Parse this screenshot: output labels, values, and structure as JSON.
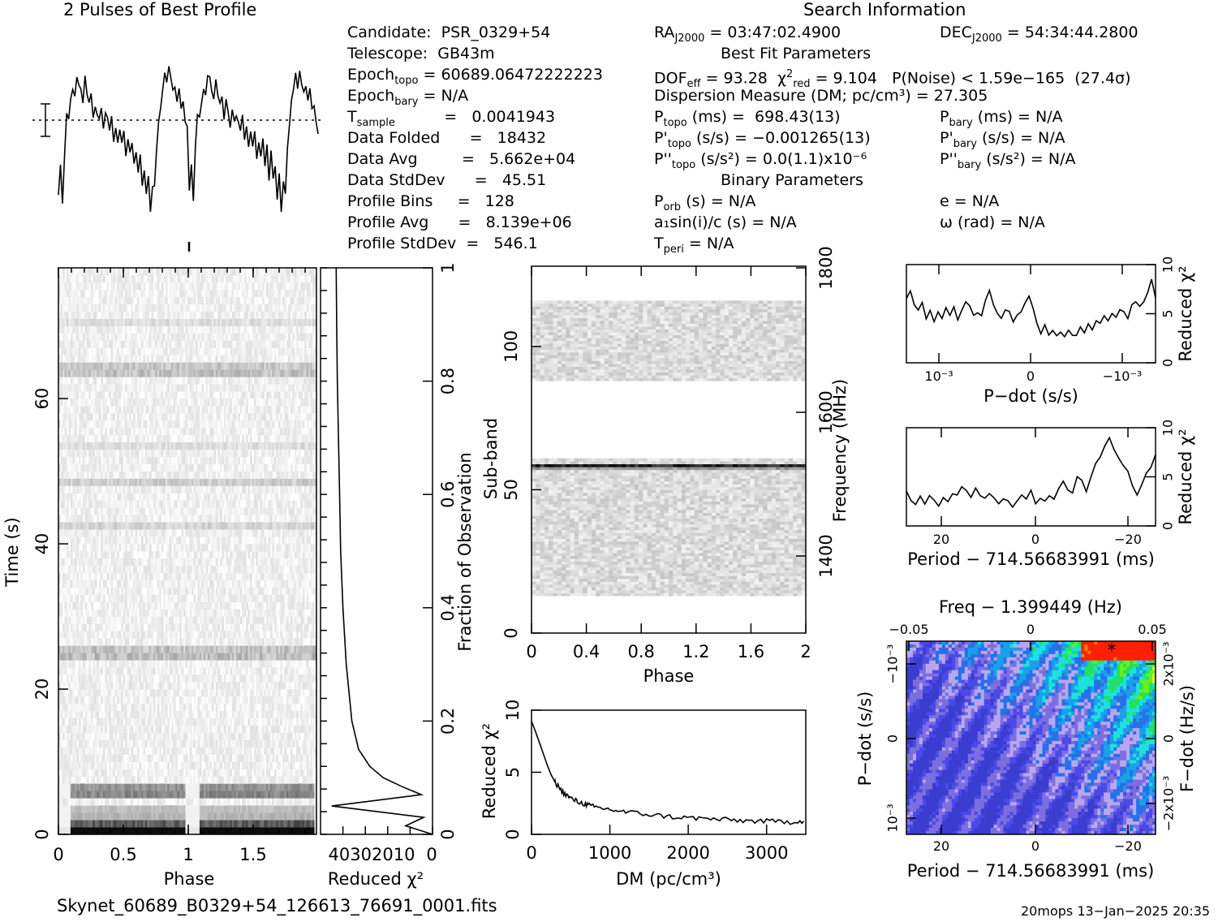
{
  "header": {
    "profile_title": "2 Pulses of Best Profile",
    "search_title": "Search Information",
    "best_fit_title": "Best Fit Parameters",
    "binary_title": "Binary Parameters"
  },
  "info_left": [
    {
      "label": "Candidate:",
      "value": "PSR_0329+54"
    },
    {
      "label": "Telescope:",
      "value": "GB43m"
    },
    {
      "label": "Epoch_topo =",
      "value": "60689.06472222223"
    },
    {
      "label": "Epoch_bary =",
      "value": "N/A"
    },
    {
      "label": "T_sample =",
      "value": "0.0041943"
    },
    {
      "label": "Data Folded =",
      "value": "18432"
    },
    {
      "label": "Data Avg =",
      "value": "5.662e+04"
    },
    {
      "label": "Data StdDev =",
      "value": "45.51"
    },
    {
      "label": "Profile Bins =",
      "value": "128"
    },
    {
      "label": "Profile Avg =",
      "value": "8.139e+06"
    },
    {
      "label": "Profile StdDev =",
      "value": "546.1"
    }
  ],
  "info_lines": {
    "candidate": "Candidate:  PSR_0329+54",
    "telescope": "Telescope:  GB43m",
    "epoch_topo": "= 60689.06472222223",
    "epoch_bary": "= N/A",
    "tsample": "=   0.0041943",
    "folded": "Data Folded      =   18432",
    "avg": "Data Avg         =   5.662e+04",
    "stddev": "Data StdDev      =   45.51",
    "bins": "Profile Bins     =   128",
    "pavg": "Profile Avg      =   8.139e+06",
    "pstd": "Profile StdDev  =   546.1",
    "ra": "= 03:47:02.4900",
    "dec": "= 54:34:44.2800",
    "dof": "= 93.28",
    "chi": "= 9.104   P(Noise) < 1.59e−165  (27.4σ)",
    "dm": "Dispersion Measure (DM; pc/cm³) = 27.305",
    "ptopo": "(ms) =  698.43(13)",
    "pbary": "(ms) = N/A",
    "pdtopo": "(s/s) = −0.001265(13)",
    "pdbary": "(s/s) = N/A",
    "pddtopo": "(s/s²) = 0.0(1.1)x10⁻⁶",
    "pddbary": "(s/s²) = N/A",
    "porb": "(s) = N/A",
    "e": "e = N/A",
    "a1": "a₁sin(i)/c (s) = N/A",
    "omega": "ω (rad) = N/A",
    "tperi": "= N/A"
  },
  "colors": {
    "trace": "#000000",
    "background": "#ffffff"
  },
  "chart_data": [
    {
      "id": "profile",
      "type": "line",
      "title": "2 Pulses of Best Profile",
      "xlim": [
        0,
        2
      ],
      "description_points_per_pulse": 64,
      "y_shape": [
        -2.5,
        -1.6,
        -2.8,
        -1.0,
        0.3,
        0.1,
        0.6,
        1.2,
        0.9,
        1.6,
        1.3,
        1.0,
        0.7,
        1.4,
        0.9,
        0.5,
        0.8,
        0.2,
        0.6,
        0.3,
        -0.1,
        0.4,
        -0.2,
        0.2,
        0.0,
        -0.4,
        0.3,
        -0.6,
        -0.3,
        -0.8,
        -0.2,
        -0.9,
        -0.5,
        -1.3,
        -0.7,
        -1.1,
        -0.6,
        -1.5,
        -1.0,
        -1.9,
        -1.2,
        -2.1,
        -1.6,
        -2.6,
        -1.9,
        -3.0,
        -2.2,
        -2.4,
        -1.0,
        -0.2,
        0.5,
        1.0,
        1.7,
        1.2,
        1.8,
        1.4,
        1.0,
        1.3,
        0.6,
        0.9,
        0.3,
        0.5,
        0.0,
        -0.4
      ]
    },
    {
      "id": "time-phase",
      "type": "heatmap",
      "xlabel": "Phase",
      "ylabel": "Time (s)",
      "xlim": [
        0,
        2
      ],
      "ylim": [
        0,
        78
      ],
      "xticks": [
        "0",
        "0.5",
        "1",
        "1.5"
      ],
      "yticks": [
        "0",
        "20",
        "40",
        "60"
      ]
    },
    {
      "id": "chi-vs-time",
      "type": "line",
      "xlabel": "Reduced χ²",
      "ylabel": "Fraction of Observation",
      "xticks": [
        "40",
        "30",
        "20",
        "10",
        "0"
      ],
      "yticks": [
        "0",
        "0.2",
        "0.4",
        "0.6",
        "0.8",
        "1"
      ],
      "fraction": [
        0.0,
        0.015,
        0.03,
        0.05,
        0.07,
        0.085,
        0.1,
        0.12,
        0.15,
        0.2,
        0.3,
        0.4,
        0.5,
        0.6,
        0.7,
        0.8,
        0.9,
        1.0
      ],
      "chi": [
        0.0,
        12.0,
        4.0,
        45.0,
        5.0,
        14.0,
        22.0,
        28.0,
        33.0,
        36.0,
        38.5,
        40.0,
        41.0,
        41.5,
        42.0,
        42.5,
        42.8,
        43.0
      ]
    },
    {
      "id": "subband-phase",
      "type": "heatmap",
      "xlabel": "Phase",
      "ylabel": "Sub-band",
      "y2label": "Frequency (MHz)",
      "xticks": [
        "0",
        "0.4",
        "0.8",
        "1.2",
        "1.6",
        "2"
      ],
      "yticks": [
        "0",
        "50",
        "100"
      ],
      "y2ticks": [
        "1400",
        "1600",
        "1800"
      ],
      "ylim": [
        0,
        128
      ],
      "bands": [
        {
          "from": 13,
          "to": 60
        },
        {
          "from": 88,
          "to": 115
        }
      ],
      "strong_band": 58
    },
    {
      "id": "dm-chi",
      "type": "line",
      "xlabel": "DM (pc/cm³)",
      "ylabel": "Reduced χ²",
      "xlim": [
        0,
        3500
      ],
      "ylim": [
        0,
        10
      ],
      "xticks": [
        "0",
        "1000",
        "2000",
        "3000"
      ],
      "yticks": [
        "0",
        "5",
        "10"
      ],
      "x": [
        0,
        50,
        100,
        150,
        200,
        250,
        300,
        400,
        500,
        600,
        700,
        800,
        1000,
        1200,
        1500,
        1800,
        2100,
        2400,
        2700,
        3000,
        3300,
        3500
      ],
      "y": [
        9.1,
        8.3,
        7.4,
        6.5,
        5.6,
        4.8,
        4.2,
        3.4,
        2.9,
        2.6,
        2.4,
        2.2,
        2.0,
        1.8,
        1.6,
        1.4,
        1.3,
        1.2,
        1.1,
        1.05,
        1.0,
        1.1
      ]
    },
    {
      "id": "pdot-chi",
      "type": "line",
      "xlabel": "P−dot (s/s)",
      "ylabel": "Reduced χ²",
      "ylim": [
        0,
        10
      ],
      "xticks": [
        "10⁻³",
        "0",
        "−10⁻³"
      ],
      "yticks": [
        "0",
        "5",
        "10"
      ],
      "y": [
        6.5,
        7.2,
        6.0,
        5.4,
        5.9,
        4.6,
        5.2,
        4.4,
        5.0,
        4.3,
        5.5,
        4.8,
        5.7,
        4.2,
        5.3,
        6.4,
        5.8,
        4.9,
        5.2,
        4.5,
        6.1,
        7.3,
        6.2,
        5.0,
        4.8,
        5.6,
        5.1,
        4.4,
        4.7,
        5.3,
        6.2,
        7.0,
        5.4,
        3.9,
        3.2,
        3.6,
        2.8,
        3.4,
        2.6,
        3.1,
        2.4,
        3.5,
        3.0,
        2.9,
        3.8,
        3.3,
        4.1,
        3.6,
        4.5,
        4.0,
        4.9,
        4.3,
        5.1,
        4.6,
        5.6,
        5.0,
        4.4,
        5.8,
        6.3,
        5.5,
        6.1,
        7.0,
        8.6,
        6.8
      ]
    },
    {
      "id": "period-chi",
      "type": "line",
      "xlabel": "Period − 714.56683991 (ms)",
      "ylabel": "Reduced χ²",
      "ylim": [
        0,
        10
      ],
      "xticks": [
        "20",
        "0",
        "−20"
      ],
      "yticks": [
        "0",
        "5",
        "10"
      ],
      "y": [
        3.3,
        2.6,
        2.2,
        2.9,
        2.4,
        3.1,
        2.7,
        2.3,
        3.0,
        2.6,
        3.4,
        3.1,
        3.9,
        3.5,
        3.2,
        3.8,
        3.3,
        2.9,
        3.4,
        2.6,
        2.3,
        2.9,
        2.5,
        2.2,
        2.8,
        3.4,
        3.0,
        3.7,
        2.5,
        2.9,
        2.4,
        3.3,
        2.8,
        3.9,
        4.8,
        3.8,
        3.4,
        5.3,
        4.9,
        3.7,
        5.0,
        6.1,
        7.1,
        8.2,
        9.0,
        8.0,
        7.0,
        6.4,
        5.5,
        4.0,
        3.3,
        4.2,
        5.3,
        6.2,
        7.0
      ]
    },
    {
      "id": "pp-dot",
      "type": "heatmap",
      "title": "Freq − 1.399449 (Hz)",
      "xlabel": "Period − 714.56683991 (ms)",
      "ylabel": "P−dot (s/s)",
      "y2label": "F−dot (Hz/s)",
      "xticks": [
        "20",
        "0",
        "−20"
      ],
      "x2ticks": [
        "−0.05",
        "0",
        "0.05"
      ],
      "yticks": [
        "10⁻³",
        "0",
        "−10⁻³"
      ],
      "y2ticks": [
        "−2x10⁻³",
        "0",
        "2x10⁻³"
      ],
      "palette": [
        "#3b3dd0",
        "#4a4ae8",
        "#7d6ee0",
        "#b7a7f0",
        "#2870e8",
        "#1aa0e8",
        "#1fe0e0",
        "#22e060",
        "#66f020",
        "#e0f020",
        "#ff8000",
        "#ff2000"
      ]
    }
  ],
  "footer": {
    "filename": "Skynet_60689_B0329+54_126613_76691_0001.fits",
    "stamp": "20mops 13−Jan−2025 20:35"
  }
}
